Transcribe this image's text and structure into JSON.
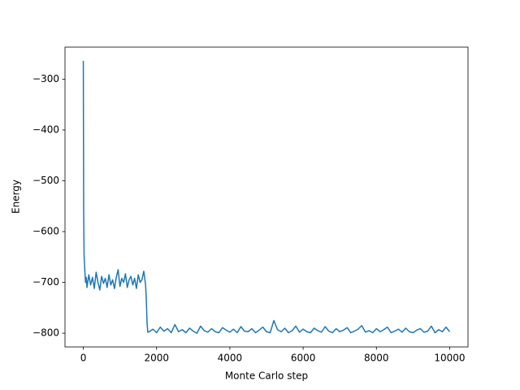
{
  "chart_data": {
    "type": "line",
    "x_label": "Monte Carlo step",
    "y_label": "Energy",
    "x": [
      0,
      5,
      10,
      20,
      40,
      60,
      80,
      100,
      150,
      200,
      250,
      300,
      350,
      400,
      450,
      500,
      550,
      600,
      650,
      700,
      750,
      800,
      850,
      900,
      950,
      1000,
      1050,
      1100,
      1150,
      1200,
      1250,
      1300,
      1350,
      1400,
      1450,
      1500,
      1550,
      1600,
      1650,
      1700,
      1720,
      1740,
      1760,
      1800,
      1900,
      2000,
      2100,
      2200,
      2300,
      2400,
      2500,
      2600,
      2700,
      2800,
      2900,
      3000,
      3100,
      3200,
      3300,
      3400,
      3500,
      3600,
      3700,
      3800,
      3900,
      4000,
      4100,
      4200,
      4300,
      4400,
      4500,
      4600,
      4700,
      4800,
      4900,
      5000,
      5100,
      5200,
      5300,
      5400,
      5500,
      5600,
      5700,
      5800,
      5900,
      6000,
      6100,
      6200,
      6300,
      6400,
      6500,
      6600,
      6700,
      6800,
      6900,
      7000,
      7100,
      7200,
      7300,
      7400,
      7500,
      7600,
      7700,
      7800,
      7900,
      8000,
      8100,
      8200,
      8300,
      8400,
      8500,
      8600,
      8700,
      8800,
      8900,
      9000,
      9100,
      9200,
      9300,
      9400,
      9500,
      9600,
      9700,
      9800,
      9900,
      10000
    ],
    "series": [
      {
        "name": "Energy",
        "color": "#1f77b4",
        "values": [
          -264,
          -420,
          -560,
          -645,
          -675,
          -700,
          -690,
          -710,
          -685,
          -705,
          -690,
          -712,
          -680,
          -700,
          -715,
          -688,
          -702,
          -692,
          -710,
          -685,
          -705,
          -695,
          -712,
          -690,
          -675,
          -708,
          -692,
          -700,
          -683,
          -710,
          -695,
          -688,
          -705,
          -692,
          -712,
          -685,
          -700,
          -695,
          -678,
          -705,
          -735,
          -780,
          -798,
          -797,
          -792,
          -799,
          -788,
          -796,
          -791,
          -799,
          -783,
          -797,
          -793,
          -799,
          -790,
          -796,
          -800,
          -786,
          -795,
          -798,
          -791,
          -797,
          -799,
          -789,
          -794,
          -798,
          -792,
          -799,
          -787,
          -796,
          -797,
          -791,
          -799,
          -794,
          -788,
          -797,
          -799,
          -775,
          -793,
          -797,
          -790,
          -799,
          -795,
          -786,
          -798,
          -792,
          -797,
          -799,
          -790,
          -795,
          -798,
          -787,
          -796,
          -799,
          -791,
          -797,
          -794,
          -789,
          -799,
          -796,
          -792,
          -785,
          -798,
          -795,
          -799,
          -791,
          -797,
          -793,
          -788,
          -799,
          -796,
          -792,
          -798,
          -790,
          -797,
          -799,
          -794,
          -791,
          -798,
          -796,
          -786,
          -799,
          -793,
          -797,
          -788,
          -797
        ]
      }
    ],
    "xlim": [
      -500,
      10500
    ],
    "ylim": [
      -827,
      -237
    ],
    "xticks": [
      0,
      2000,
      4000,
      6000,
      8000,
      10000
    ],
    "yticks": [
      {
        "value": -300,
        "label": "−300"
      },
      {
        "value": -400,
        "label": "−400"
      },
      {
        "value": -500,
        "label": "−500"
      },
      {
        "value": -600,
        "label": "−600"
      },
      {
        "value": -700,
        "label": "−700"
      },
      {
        "value": -800,
        "label": "−800"
      }
    ],
    "grid": false
  }
}
